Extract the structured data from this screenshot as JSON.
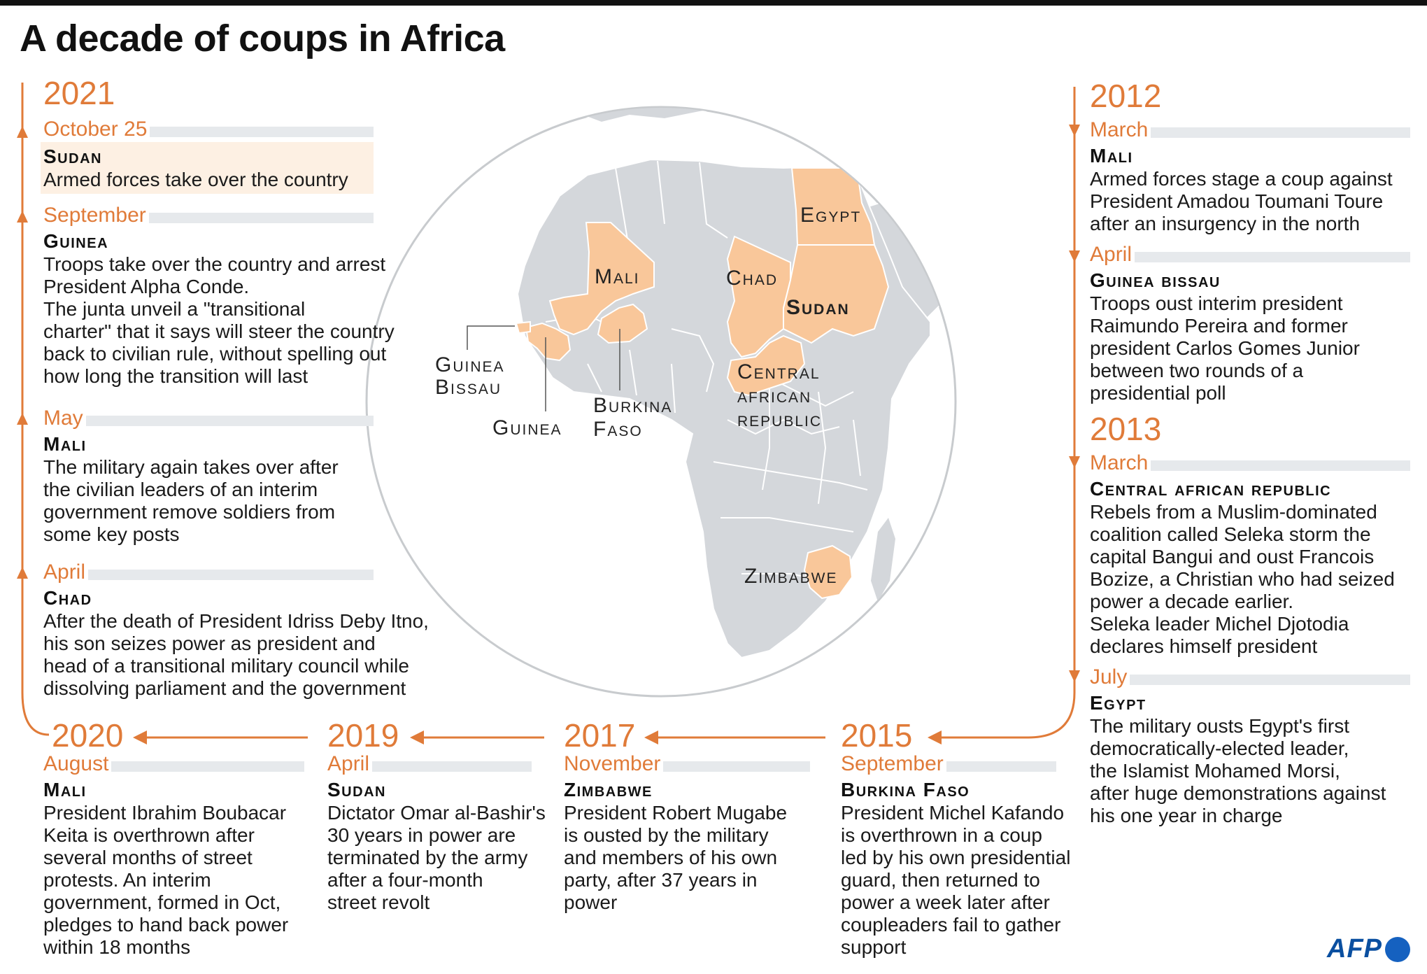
{
  "title": "A decade of coups in Africa",
  "colors": {
    "accent": "#e07b39",
    "highlight": "#f9c79a",
    "land": "#d4d7db",
    "ocean": "#ffffff"
  },
  "left_column": {
    "year": "2021",
    "events": [
      {
        "month": "October 25",
        "country": "Sudan",
        "lines": [
          "Armed forces take over the country"
        ],
        "highlighted": true
      },
      {
        "month": "September",
        "country": "Guinea",
        "lines": [
          "Troops take over the country and arrest",
          "President Alpha Conde.",
          "The junta unveil a \"transitional",
          "charter\" that it says will steer the country",
          "back to civilian rule, without spelling out",
          "how long the transition will last"
        ]
      },
      {
        "month": "May",
        "country": "Mali",
        "lines": [
          "The military again takes over after",
          "the civilian leaders of an interim",
          "government remove soldiers from",
          "some key posts"
        ]
      },
      {
        "month": "April",
        "country": "Chad",
        "lines": [
          "After the death of President Idriss Deby Itno,",
          "his son seizes power as president and",
          "head of a transitional military council while",
          "dissolving parliament and the government"
        ]
      }
    ]
  },
  "bottom_row": [
    {
      "year": "2020",
      "month": "August",
      "country": "Mali",
      "lines": [
        "President Ibrahim Boubacar",
        "Keita is overthrown after",
        "several months of street",
        "protests. An interim",
        "government, formed in Oct,",
        "pledges to hand back power",
        "within 18 months"
      ]
    },
    {
      "year": "2019",
      "month": "April",
      "country": "Sudan",
      "lines": [
        "Dictator Omar al-Bashir's",
        "30 years in power are",
        "terminated by the army",
        "after a four-month",
        "street revolt"
      ]
    },
    {
      "year": "2017",
      "month": "November",
      "country": "Zimbabwe",
      "lines": [
        "President Robert Mugabe",
        "is ousted by the military",
        "and members of his own",
        "party, after 37 years in",
        "power"
      ]
    },
    {
      "year": "2015",
      "month": "September",
      "country": "Burkina Faso",
      "lines": [
        "President Michel Kafando",
        "is overthrown in a coup",
        "led by his own presidential",
        "guard, then returned to",
        "power a week later after",
        "coupleaders fail to gather",
        "support"
      ]
    }
  ],
  "right_column": [
    {
      "year": "2012",
      "events": [
        {
          "month": "March",
          "country": "Mali",
          "lines": [
            "Armed forces stage a coup against",
            "President Amadou Toumani Toure",
            "after an insurgency in the north"
          ]
        },
        {
          "month": "April",
          "country": "Guinea bissau",
          "lines": [
            "Troops oust interim president",
            "Raimundo Pereira and former",
            "president Carlos Gomes Junior",
            "between two rounds of a",
            "presidential poll"
          ]
        }
      ]
    },
    {
      "year": "2013",
      "events": [
        {
          "month": "March",
          "country": "Central african republic",
          "lines": [
            "Rebels from a Muslim-dominated",
            "coalition called Seleka storm the",
            "capital Bangui and oust Francois",
            "Bozize, a Christian who had seized",
            "power a decade earlier.",
            "Seleka leader Michel Djotodia",
            "declares himself president"
          ]
        },
        {
          "month": "July",
          "country": "Egypt",
          "lines": [
            "The military ousts Egypt's first",
            "democratically-elected leader,",
            "the Islamist Mohamed Morsi,",
            "after huge demonstrations against",
            "his one year in charge"
          ]
        }
      ]
    }
  ],
  "map": {
    "labels": {
      "egypt": "Egypt",
      "mali": "Mali",
      "chad": "Chad",
      "sudan": "Sudan",
      "car_1": "Central",
      "car_2": "african",
      "car_3": "republic",
      "guinea_bissau_1": "Guinea",
      "guinea_bissau_2": "Bissau",
      "guinea": "Guinea",
      "burkina_1": "Burkina",
      "burkina_2": "Faso",
      "zimbabwe": "Zimbabwe"
    }
  },
  "credit": "AFP"
}
